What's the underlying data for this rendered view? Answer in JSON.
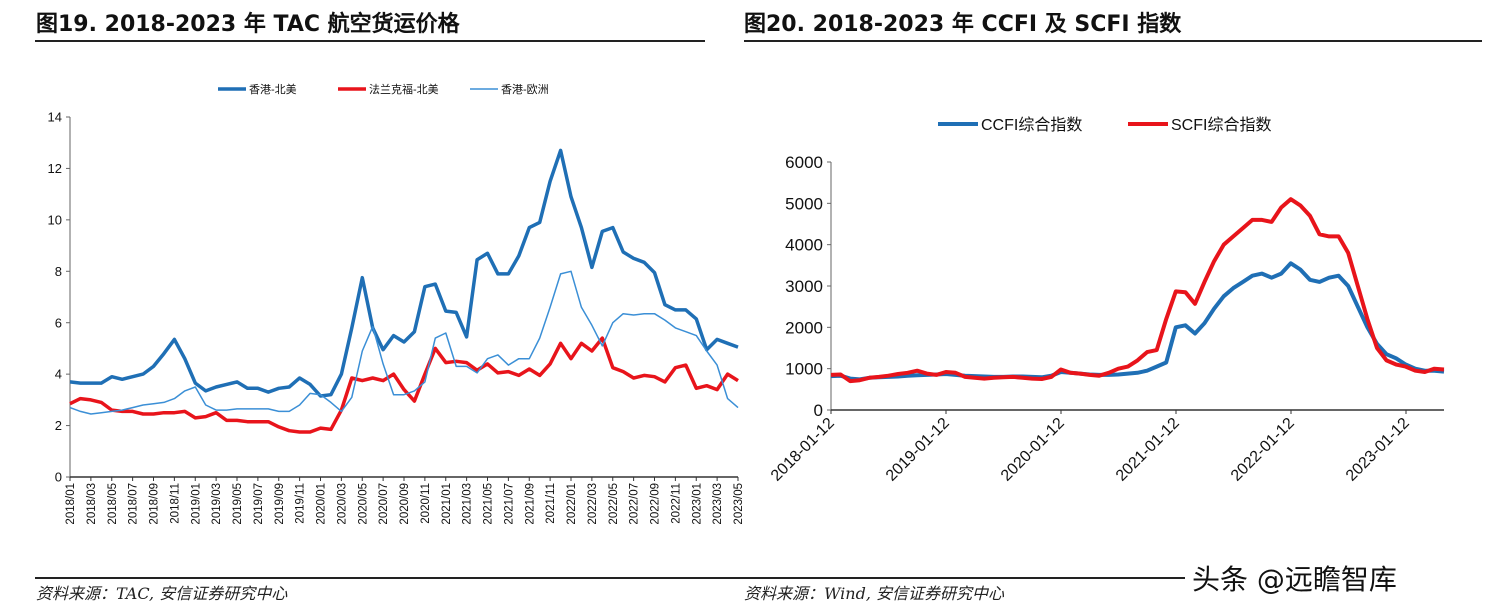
{
  "left_title": "图19. 2018-2023 年 TAC 航空货运价格",
  "right_title": "图20. 2018-2023 年 CCFI 及 SCFI 指数",
  "left_source": "资料来源：TAC, 安信证券研究中心",
  "right_source": "资料来源：Wind, 安信证券研究中心",
  "watermark": "头条 @远瞻智库",
  "chart_data": [
    {
      "type": "line",
      "x_tick_labels": [
        "2018/01",
        "2018/03",
        "2018/05",
        "2018/07",
        "2018/09",
        "2018/11",
        "2019/01",
        "2019/03",
        "2019/05",
        "2019/07",
        "2019/09",
        "2019/11",
        "2020/01",
        "2020/03",
        "2020/05",
        "2020/07",
        "2020/09",
        "2020/11",
        "2021/01",
        "2021/03",
        "2021/05",
        "2021/07",
        "2021/09",
        "2021/11",
        "2022/01",
        "2022/03",
        "2022/05",
        "2022/07",
        "2022/09",
        "2022/11",
        "2023/01",
        "2023/03",
        "2023/05"
      ],
      "x_start": "2018/01",
      "x_end": "2023/05",
      "x_step": "monthly",
      "ylim": [
        0,
        14
      ],
      "y_ticks": [
        0,
        2,
        4,
        6,
        8,
        10,
        12,
        14
      ],
      "grid": false,
      "legend": "top",
      "series": [
        {
          "name": "香港-北美",
          "color": "#1f6fb5",
          "width": "thick",
          "values": [
            3.7,
            3.65,
            3.65,
            3.65,
            3.9,
            3.8,
            3.9,
            4.0,
            4.3,
            4.8,
            5.35,
            4.6,
            3.65,
            3.35,
            3.5,
            3.6,
            3.7,
            3.45,
            3.45,
            3.3,
            3.45,
            3.5,
            3.85,
            3.6,
            3.15,
            3.2,
            4.0,
            5.8,
            7.75,
            5.8,
            4.95,
            5.5,
            5.25,
            5.65,
            7.4,
            7.5,
            6.45,
            6.4,
            5.45,
            8.45,
            8.7,
            7.9,
            7.9,
            8.6,
            9.7,
            9.9,
            11.5,
            12.7,
            10.9,
            9.7,
            8.15,
            9.55,
            9.7,
            8.75,
            8.5,
            8.35,
            7.95,
            6.7,
            6.5,
            6.5,
            6.15,
            4.95,
            5.35,
            5.2,
            5.05
          ]
        },
        {
          "name": "法兰克福-北美",
          "color": "#e8141b",
          "width": "thick",
          "values": [
            2.85,
            3.05,
            3.0,
            2.9,
            2.6,
            2.55,
            2.55,
            2.45,
            2.45,
            2.5,
            2.5,
            2.55,
            2.3,
            2.35,
            2.5,
            2.2,
            2.2,
            2.15,
            2.15,
            2.15,
            1.95,
            1.8,
            1.75,
            1.75,
            1.9,
            1.85,
            2.6,
            3.85,
            3.75,
            3.85,
            3.75,
            4.0,
            3.4,
            2.95,
            4.0,
            5.0,
            4.45,
            4.5,
            4.45,
            4.15,
            4.4,
            4.05,
            4.1,
            3.95,
            4.2,
            3.95,
            4.4,
            5.2,
            4.6,
            5.2,
            4.9,
            5.4,
            4.25,
            4.1,
            3.85,
            3.95,
            3.9,
            3.7,
            4.25,
            4.35,
            3.45,
            3.55,
            3.4,
            4.0,
            3.75
          ]
        },
        {
          "name": "香港-欧洲",
          "color": "#3b8fd6",
          "width": "thin",
          "values": [
            2.7,
            2.55,
            2.45,
            2.5,
            2.55,
            2.6,
            2.7,
            2.8,
            2.85,
            2.9,
            3.05,
            3.35,
            3.5,
            2.8,
            2.6,
            2.6,
            2.65,
            2.65,
            2.65,
            2.65,
            2.55,
            2.55,
            2.8,
            3.25,
            3.2,
            2.9,
            2.55,
            3.1,
            4.9,
            5.85,
            4.4,
            3.2,
            3.2,
            3.35,
            3.7,
            5.4,
            5.6,
            4.3,
            4.3,
            4.05,
            4.6,
            4.75,
            4.35,
            4.6,
            4.6,
            5.4,
            6.6,
            7.9,
            8.0,
            6.6,
            5.9,
            5.1,
            6.0,
            6.35,
            6.3,
            6.35,
            6.35,
            6.1,
            5.8,
            5.65,
            5.5,
            4.9,
            4.35,
            3.05,
            2.7
          ]
        }
      ]
    },
    {
      "type": "line",
      "x_tick_labels": [
        "2018-01-12",
        "2019-01-12",
        "2020-01-12",
        "2021-01-12",
        "2022-01-12",
        "2023-01-12"
      ],
      "x_start": "2018-01",
      "x_end": "2023-05",
      "x_step": "monthly (sampled from weekly)",
      "ylim": [
        0,
        6000
      ],
      "y_ticks": [
        0,
        1000,
        2000,
        3000,
        4000,
        5000,
        6000
      ],
      "grid": false,
      "legend": "top",
      "series": [
        {
          "name": "CCFI综合指数",
          "color": "#1f6fb5",
          "values": [
            820,
            830,
            760,
            740,
            780,
            790,
            800,
            810,
            830,
            840,
            850,
            860,
            870,
            850,
            830,
            820,
            810,
            800,
            800,
            810,
            810,
            800,
            790,
            830,
            920,
            900,
            880,
            860,
            850,
            850,
            860,
            880,
            900,
            950,
            1050,
            1150,
            2000,
            2050,
            1850,
            2100,
            2450,
            2750,
            2950,
            3100,
            3250,
            3300,
            3200,
            3300,
            3550,
            3400,
            3150,
            3100,
            3200,
            3250,
            3000,
            2500,
            2000,
            1600,
            1350,
            1250,
            1100,
            1000,
            950,
            950,
            930
          ]
        },
        {
          "name": "SCFI综合指数",
          "color": "#e8141b",
          "values": [
            850,
            860,
            700,
            720,
            780,
            800,
            830,
            870,
            900,
            950,
            880,
            850,
            920,
            900,
            800,
            780,
            760,
            780,
            790,
            800,
            780,
            760,
            750,
            800,
            980,
            900,
            880,
            850,
            830,
            900,
            1000,
            1050,
            1200,
            1400,
            1450,
            2200,
            2870,
            2850,
            2570,
            3100,
            3600,
            4000,
            4200,
            4400,
            4600,
            4600,
            4550,
            4900,
            5100,
            4950,
            4700,
            4250,
            4200,
            4200,
            3800,
            3000,
            2200,
            1500,
            1200,
            1100,
            1050,
            950,
            920,
            1000,
            980
          ]
        }
      ]
    }
  ]
}
